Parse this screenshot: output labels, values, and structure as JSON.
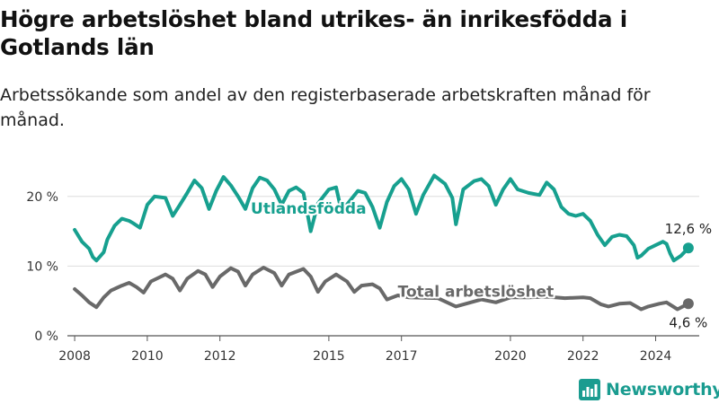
{
  "header": {
    "title": "Högre arbetslöshet bland utrikes- än inrikesfödda i Gotlands län",
    "subtitle": "Arbetssökande som andel av den registerbaserade arbetskraften månad för månad."
  },
  "brand": {
    "name": "Newsworthy",
    "icon": "bar-chart-logo-icon",
    "color": "#1a9c90"
  },
  "chart_data": {
    "type": "line",
    "x_axis": {
      "min": 2007.8,
      "max": 2025.2,
      "ticks": [
        2008,
        2010,
        2012,
        2015,
        2017,
        2020,
        2022,
        2024
      ],
      "tick_labels": [
        "2008",
        "2010",
        "2012",
        "2015",
        "2017",
        "2020",
        "2022",
        "2024"
      ]
    },
    "y_axis": {
      "min": 0,
      "max": 25,
      "ticks": [
        0,
        10,
        20
      ],
      "tick_labels": [
        "0 %",
        "10 %",
        "20 %"
      ]
    },
    "grid": "horizontal",
    "series": [
      {
        "name": "Utlandsfödda",
        "color": "#17a08f",
        "end_label": "12,6 %",
        "points": [
          [
            2008.0,
            15.2
          ],
          [
            2008.2,
            13.5
          ],
          [
            2008.4,
            12.5
          ],
          [
            2008.5,
            11.3
          ],
          [
            2008.6,
            10.8
          ],
          [
            2008.8,
            12.0
          ],
          [
            2008.9,
            13.8
          ],
          [
            2009.1,
            15.8
          ],
          [
            2009.3,
            16.8
          ],
          [
            2009.5,
            16.5
          ],
          [
            2009.6,
            16.2
          ],
          [
            2009.8,
            15.5
          ],
          [
            2010.0,
            18.8
          ],
          [
            2010.2,
            20.0
          ],
          [
            2010.5,
            19.8
          ],
          [
            2010.7,
            17.2
          ],
          [
            2010.9,
            18.8
          ],
          [
            2011.1,
            20.5
          ],
          [
            2011.3,
            22.3
          ],
          [
            2011.5,
            21.2
          ],
          [
            2011.7,
            18.2
          ],
          [
            2011.9,
            20.8
          ],
          [
            2012.1,
            22.8
          ],
          [
            2012.3,
            21.6
          ],
          [
            2012.5,
            20.0
          ],
          [
            2012.7,
            18.2
          ],
          [
            2012.9,
            21.2
          ],
          [
            2013.1,
            22.7
          ],
          [
            2013.3,
            22.3
          ],
          [
            2013.5,
            21.0
          ],
          [
            2013.7,
            18.8
          ],
          [
            2013.9,
            20.8
          ],
          [
            2014.1,
            21.3
          ],
          [
            2014.3,
            20.5
          ],
          [
            2014.4,
            17.8
          ],
          [
            2014.5,
            15.0
          ],
          [
            2014.7,
            19.0
          ],
          [
            2015.0,
            21.0
          ],
          [
            2015.2,
            21.3
          ],
          [
            2015.3,
            19.0
          ],
          [
            2015.4,
            18.2
          ],
          [
            2015.6,
            19.5
          ],
          [
            2015.8,
            20.8
          ],
          [
            2016.0,
            20.5
          ],
          [
            2016.2,
            18.5
          ],
          [
            2016.4,
            15.5
          ],
          [
            2016.6,
            19.2
          ],
          [
            2016.8,
            21.5
          ],
          [
            2017.0,
            22.5
          ],
          [
            2017.2,
            21.0
          ],
          [
            2017.4,
            17.5
          ],
          [
            2017.6,
            20.2
          ],
          [
            2017.9,
            23.0
          ],
          [
            2018.2,
            21.8
          ],
          [
            2018.4,
            19.8
          ],
          [
            2018.5,
            16.0
          ],
          [
            2018.7,
            21.0
          ],
          [
            2019.0,
            22.2
          ],
          [
            2019.2,
            22.5
          ],
          [
            2019.4,
            21.5
          ],
          [
            2019.6,
            18.8
          ],
          [
            2019.8,
            21.0
          ],
          [
            2020.0,
            22.5
          ],
          [
            2020.2,
            21.0
          ],
          [
            2020.5,
            20.5
          ],
          [
            2020.8,
            20.2
          ],
          [
            2021.0,
            22.0
          ],
          [
            2021.2,
            21.0
          ],
          [
            2021.4,
            18.5
          ],
          [
            2021.6,
            17.5
          ],
          [
            2021.8,
            17.2
          ],
          [
            2022.0,
            17.5
          ],
          [
            2022.2,
            16.5
          ],
          [
            2022.4,
            14.5
          ],
          [
            2022.6,
            13.0
          ],
          [
            2022.8,
            14.2
          ],
          [
            2023.0,
            14.5
          ],
          [
            2023.2,
            14.3
          ],
          [
            2023.4,
            13.0
          ],
          [
            2023.5,
            11.2
          ],
          [
            2023.6,
            11.5
          ],
          [
            2023.8,
            12.5
          ],
          [
            2024.0,
            13.0
          ],
          [
            2024.2,
            13.5
          ],
          [
            2024.3,
            13.2
          ],
          [
            2024.4,
            11.8
          ],
          [
            2024.5,
            10.8
          ],
          [
            2024.7,
            11.5
          ],
          [
            2024.9,
            12.6
          ]
        ]
      },
      {
        "name": "Total arbetslöshet",
        "color": "#696969",
        "end_label": "4,6 %",
        "points": [
          [
            2008.0,
            6.7
          ],
          [
            2008.2,
            5.8
          ],
          [
            2008.4,
            4.8
          ],
          [
            2008.6,
            4.1
          ],
          [
            2008.8,
            5.5
          ],
          [
            2009.0,
            6.5
          ],
          [
            2009.3,
            7.2
          ],
          [
            2009.5,
            7.6
          ],
          [
            2009.7,
            7.0
          ],
          [
            2009.9,
            6.2
          ],
          [
            2010.1,
            7.8
          ],
          [
            2010.5,
            8.8
          ],
          [
            2010.7,
            8.2
          ],
          [
            2010.9,
            6.5
          ],
          [
            2011.1,
            8.2
          ],
          [
            2011.4,
            9.3
          ],
          [
            2011.6,
            8.8
          ],
          [
            2011.8,
            7.0
          ],
          [
            2012.0,
            8.5
          ],
          [
            2012.3,
            9.7
          ],
          [
            2012.5,
            9.2
          ],
          [
            2012.7,
            7.2
          ],
          [
            2012.9,
            8.8
          ],
          [
            2013.2,
            9.8
          ],
          [
            2013.5,
            9.0
          ],
          [
            2013.7,
            7.2
          ],
          [
            2013.9,
            8.8
          ],
          [
            2014.3,
            9.6
          ],
          [
            2014.5,
            8.5
          ],
          [
            2014.7,
            6.3
          ],
          [
            2014.9,
            7.8
          ],
          [
            2015.2,
            8.8
          ],
          [
            2015.5,
            7.8
          ],
          [
            2015.7,
            6.3
          ],
          [
            2015.9,
            7.2
          ],
          [
            2016.2,
            7.4
          ],
          [
            2016.4,
            6.8
          ],
          [
            2016.6,
            5.2
          ],
          [
            2016.9,
            5.8
          ],
          [
            2017.2,
            5.5
          ],
          [
            2018.0,
            5.4
          ],
          [
            2018.5,
            4.2
          ],
          [
            2019.2,
            5.2
          ],
          [
            2019.6,
            4.8
          ],
          [
            2020.0,
            5.5
          ],
          [
            2020.5,
            5.5
          ],
          [
            2021.0,
            5.6
          ],
          [
            2021.5,
            5.4
          ],
          [
            2022.0,
            5.5
          ],
          [
            2022.2,
            5.4
          ],
          [
            2022.5,
            4.5
          ],
          [
            2022.7,
            4.2
          ],
          [
            2023.0,
            4.6
          ],
          [
            2023.3,
            4.7
          ],
          [
            2023.6,
            3.8
          ],
          [
            2023.8,
            4.2
          ],
          [
            2024.1,
            4.6
          ],
          [
            2024.3,
            4.8
          ],
          [
            2024.6,
            3.8
          ],
          [
            2024.9,
            4.6
          ]
        ]
      }
    ]
  }
}
